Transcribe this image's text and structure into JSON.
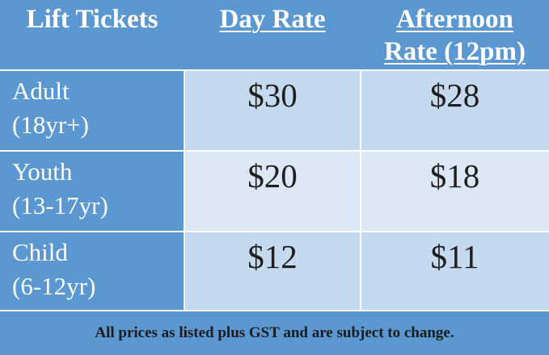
{
  "header": {
    "col1": "Lift Tickets",
    "col2": "Day Rate",
    "col3_line1": "Afternoon",
    "col3_line2": "Rate (12pm)"
  },
  "rows": [
    {
      "label_line1": "Adult",
      "label_line2": "(18yr+)",
      "day": "$30",
      "afternoon": "$28"
    },
    {
      "label_line1": "Youth",
      "label_line2": "(13-17yr)",
      "day": "$20",
      "afternoon": "$18"
    },
    {
      "label_line1": "Child",
      "label_line2": "(6-12yr)",
      "day": "$12",
      "afternoon": "$11"
    }
  ],
  "footer": "All prices as listed plus GST and are subject to change.",
  "colors": {
    "header_bg": "#5b97d1",
    "row_dark": "#c5d9ef",
    "row_light": "#dce8f5",
    "text_dark": "#1f1f1f"
  }
}
